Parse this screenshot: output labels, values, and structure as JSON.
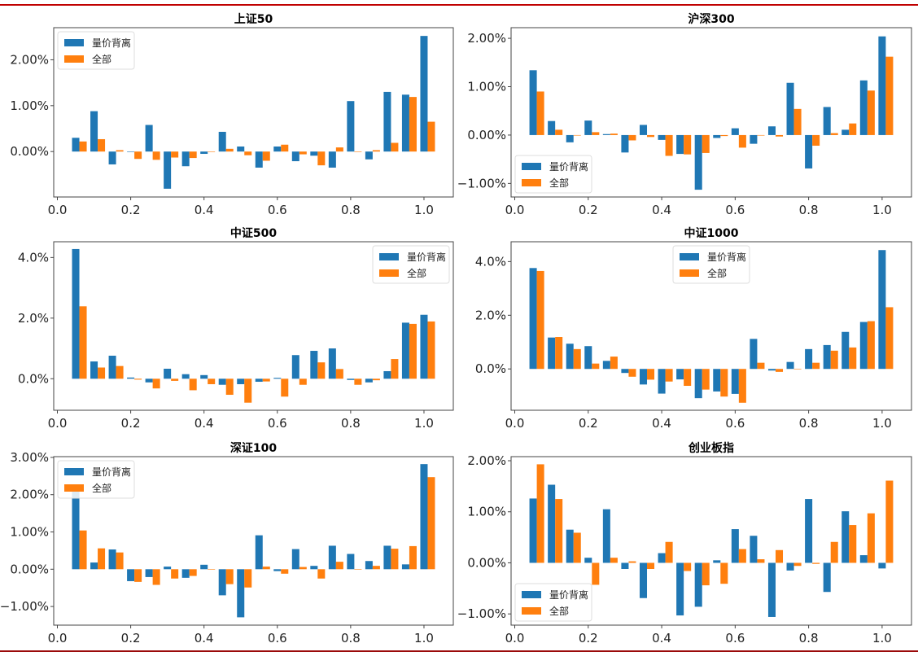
{
  "figure": {
    "colors": {
      "series_0": "#1f77b4",
      "series_1": "#ff7f0e",
      "rule_top": "#c00000",
      "rule_bottom": "#9b0a0a"
    }
  },
  "chart_data": [
    {
      "type": "bar",
      "title": "上证50",
      "x": [
        0.05,
        0.1,
        0.15,
        0.2,
        0.25,
        0.3,
        0.35,
        0.4,
        0.45,
        0.5,
        0.55,
        0.6,
        0.65,
        0.7,
        0.75,
        0.8,
        0.85,
        0.9,
        0.95,
        1.0
      ],
      "series": [
        {
          "name": "量价背离",
          "values": [
            0.3,
            0.88,
            -0.28,
            -0.01,
            0.58,
            -0.81,
            -0.32,
            -0.05,
            0.43,
            0.11,
            -0.35,
            0.11,
            -0.21,
            -0.09,
            -0.35,
            1.1,
            -0.17,
            1.3,
            1.24,
            2.52
          ]
        },
        {
          "name": "全部",
          "values": [
            0.22,
            0.27,
            0.03,
            -0.16,
            -0.18,
            -0.13,
            -0.14,
            0.0,
            0.06,
            -0.08,
            -0.2,
            0.15,
            -0.06,
            -0.3,
            0.09,
            -0.01,
            0.03,
            0.19,
            1.19,
            0.65
          ]
        }
      ],
      "xticks": [
        "0.0",
        "0.2",
        "0.4",
        "0.6",
        "0.8",
        "1.0"
      ],
      "yticks": [
        {
          "v": 0,
          "label": "0.00%"
        },
        {
          "v": 1,
          "label": "1.00%"
        },
        {
          "v": 2,
          "label": "2.00%"
        }
      ],
      "xlim": [
        -0.01,
        1.08
      ],
      "ylim": [
        -0.99,
        2.7
      ],
      "ylabel_unit": "%",
      "legend": "upper-left"
    },
    {
      "type": "bar",
      "title": "沪深300",
      "x": [
        0.05,
        0.1,
        0.15,
        0.2,
        0.25,
        0.3,
        0.35,
        0.4,
        0.45,
        0.5,
        0.55,
        0.6,
        0.65,
        0.7,
        0.75,
        0.8,
        0.85,
        0.9,
        0.95,
        1.0
      ],
      "series": [
        {
          "name": "量价背离",
          "values": [
            1.34,
            0.29,
            -0.15,
            0.3,
            0.02,
            -0.36,
            0.21,
            -0.1,
            -0.39,
            -1.13,
            -0.06,
            0.14,
            -0.18,
            0.18,
            1.08,
            -0.69,
            0.58,
            0.11,
            1.13,
            2.04
          ]
        },
        {
          "name": "全部",
          "values": [
            0.9,
            0.11,
            -0.01,
            0.06,
            0.03,
            -0.11,
            -0.04,
            -0.43,
            -0.4,
            -0.37,
            -0.02,
            -0.26,
            -0.01,
            -0.03,
            0.54,
            -0.22,
            0.04,
            0.24,
            0.92,
            1.62
          ]
        }
      ],
      "xticks": [
        "0.0",
        "0.2",
        "0.4",
        "0.6",
        "0.8",
        "1.0"
      ],
      "yticks": [
        {
          "v": -1,
          "label": "−1.00%"
        },
        {
          "v": 0,
          "label": "0.00%"
        },
        {
          "v": 1,
          "label": "1.00%"
        },
        {
          "v": 2,
          "label": "2.00%"
        }
      ],
      "xlim": [
        -0.01,
        1.08
      ],
      "ylim": [
        -1.28,
        2.22
      ],
      "legend": "lower-left"
    },
    {
      "type": "bar",
      "title": "中证500",
      "x": [
        0.05,
        0.1,
        0.15,
        0.2,
        0.25,
        0.3,
        0.35,
        0.4,
        0.45,
        0.5,
        0.55,
        0.6,
        0.65,
        0.7,
        0.75,
        0.8,
        0.85,
        0.9,
        0.95,
        1.0
      ],
      "series": [
        {
          "name": "量价背离",
          "values": [
            4.28,
            0.57,
            0.76,
            0.04,
            -0.12,
            0.33,
            0.15,
            0.12,
            -0.2,
            -0.18,
            -0.1,
            0.03,
            0.78,
            0.92,
            1.0,
            -0.04,
            -0.12,
            0.25,
            1.85,
            2.11
          ]
        },
        {
          "name": "全部",
          "values": [
            2.39,
            0.37,
            0.42,
            -0.03,
            -0.32,
            -0.07,
            -0.38,
            -0.18,
            -0.53,
            -0.79,
            -0.09,
            -0.59,
            -0.2,
            0.54,
            0.32,
            -0.2,
            -0.05,
            0.65,
            1.81,
            1.89
          ]
        }
      ],
      "xticks": [
        "0.0",
        "0.2",
        "0.4",
        "0.6",
        "0.8",
        "1.0"
      ],
      "yticks": [
        {
          "v": 0,
          "label": "0.0%"
        },
        {
          "v": 2,
          "label": "2.0%"
        },
        {
          "v": 4,
          "label": "4.0%"
        }
      ],
      "xlim": [
        -0.01,
        1.08
      ],
      "ylim": [
        -1.04,
        4.52
      ],
      "legend": "upper-right"
    },
    {
      "type": "bar",
      "title": "中证1000",
      "x": [
        0.05,
        0.1,
        0.15,
        0.2,
        0.25,
        0.3,
        0.35,
        0.4,
        0.45,
        0.5,
        0.55,
        0.6,
        0.65,
        0.7,
        0.75,
        0.8,
        0.85,
        0.9,
        0.95,
        1.0
      ],
      "series": [
        {
          "name": "量价背离",
          "values": [
            3.76,
            1.17,
            0.94,
            0.85,
            0.3,
            -0.15,
            -0.58,
            -0.92,
            -0.39,
            -1.09,
            -0.84,
            -0.93,
            1.12,
            -0.06,
            0.26,
            0.74,
            0.89,
            1.38,
            1.75,
            4.43
          ]
        },
        {
          "name": "全部",
          "values": [
            3.65,
            1.19,
            0.74,
            0.2,
            0.46,
            -0.29,
            -0.4,
            -0.47,
            -0.63,
            -0.77,
            -1.03,
            -1.26,
            0.23,
            -0.11,
            0.0,
            0.23,
            0.68,
            0.8,
            1.78,
            2.3
          ]
        }
      ],
      "xticks": [
        "0.0",
        "0.2",
        "0.4",
        "0.6",
        "0.8",
        "1.0"
      ],
      "yticks": [
        {
          "v": 0,
          "label": "0.0%"
        },
        {
          "v": 2,
          "label": "2.0%"
        },
        {
          "v": 4,
          "label": "4.0%"
        }
      ],
      "xlim": [
        -0.01,
        1.08
      ],
      "ylim": [
        -1.54,
        4.74
      ],
      "legend": "upper-center"
    },
    {
      "type": "bar",
      "title": "深证100",
      "x": [
        0.05,
        0.1,
        0.15,
        0.2,
        0.25,
        0.3,
        0.35,
        0.4,
        0.45,
        0.5,
        0.55,
        0.6,
        0.65,
        0.7,
        0.75,
        0.8,
        0.85,
        0.9,
        0.95,
        1.0
      ],
      "series": [
        {
          "name": "量价背离",
          "values": [
            2.2,
            0.18,
            0.53,
            -0.32,
            -0.21,
            0.07,
            -0.23,
            0.12,
            -0.7,
            -1.29,
            0.91,
            -0.05,
            0.54,
            0.09,
            0.63,
            0.41,
            0.22,
            0.63,
            0.13,
            2.82
          ]
        },
        {
          "name": "全部",
          "values": [
            1.04,
            0.56,
            0.45,
            -0.34,
            -0.42,
            -0.25,
            -0.18,
            0.0,
            -0.4,
            -0.49,
            0.07,
            -0.12,
            0.06,
            -0.25,
            0.2,
            0.0,
            0.09,
            0.55,
            0.62,
            2.47
          ]
        }
      ],
      "xticks": [
        "0.0",
        "0.2",
        "0.4",
        "0.6",
        "0.8",
        "1.0"
      ],
      "yticks": [
        {
          "v": -1,
          "label": "−1.00%"
        },
        {
          "v": 0,
          "label": "0.00%"
        },
        {
          "v": 1,
          "label": "1.00%"
        },
        {
          "v": 2,
          "label": "2.00%"
        },
        {
          "v": 3,
          "label": "3.00%"
        }
      ],
      "xlim": [
        -0.01,
        1.08
      ],
      "ylim": [
        -1.5,
        3.02
      ],
      "legend": "upper-left"
    },
    {
      "type": "bar",
      "title": "创业板指",
      "x": [
        0.05,
        0.1,
        0.15,
        0.2,
        0.25,
        0.3,
        0.35,
        0.4,
        0.45,
        0.5,
        0.55,
        0.6,
        0.65,
        0.7,
        0.75,
        0.8,
        0.85,
        0.9,
        0.95,
        1.0
      ],
      "series": [
        {
          "name": "量价背离",
          "values": [
            1.26,
            1.53,
            0.65,
            0.1,
            1.05,
            -0.12,
            -0.69,
            0.19,
            -1.03,
            -0.86,
            0.05,
            0.66,
            0.53,
            -1.06,
            -0.15,
            1.25,
            -0.57,
            1.01,
            0.15,
            -0.11
          ]
        },
        {
          "name": "全部",
          "values": [
            1.93,
            1.25,
            0.59,
            -0.43,
            0.1,
            0.03,
            -0.12,
            0.41,
            -0.16,
            -0.44,
            -0.41,
            0.27,
            0.07,
            0.25,
            -0.06,
            -0.02,
            0.41,
            0.74,
            0.97,
            1.61
          ]
        }
      ],
      "xticks": [
        "0.0",
        "0.2",
        "0.4",
        "0.6",
        "0.8",
        "1.0"
      ],
      "yticks": [
        {
          "v": -1,
          "label": "−1.00%"
        },
        {
          "v": 0,
          "label": "0.00%"
        },
        {
          "v": 1,
          "label": "1.00%"
        },
        {
          "v": 2,
          "label": "2.00%"
        }
      ],
      "xlim": [
        -0.01,
        1.08
      ],
      "ylim": [
        -1.22,
        2.08
      ],
      "legend": "lower-left"
    }
  ]
}
